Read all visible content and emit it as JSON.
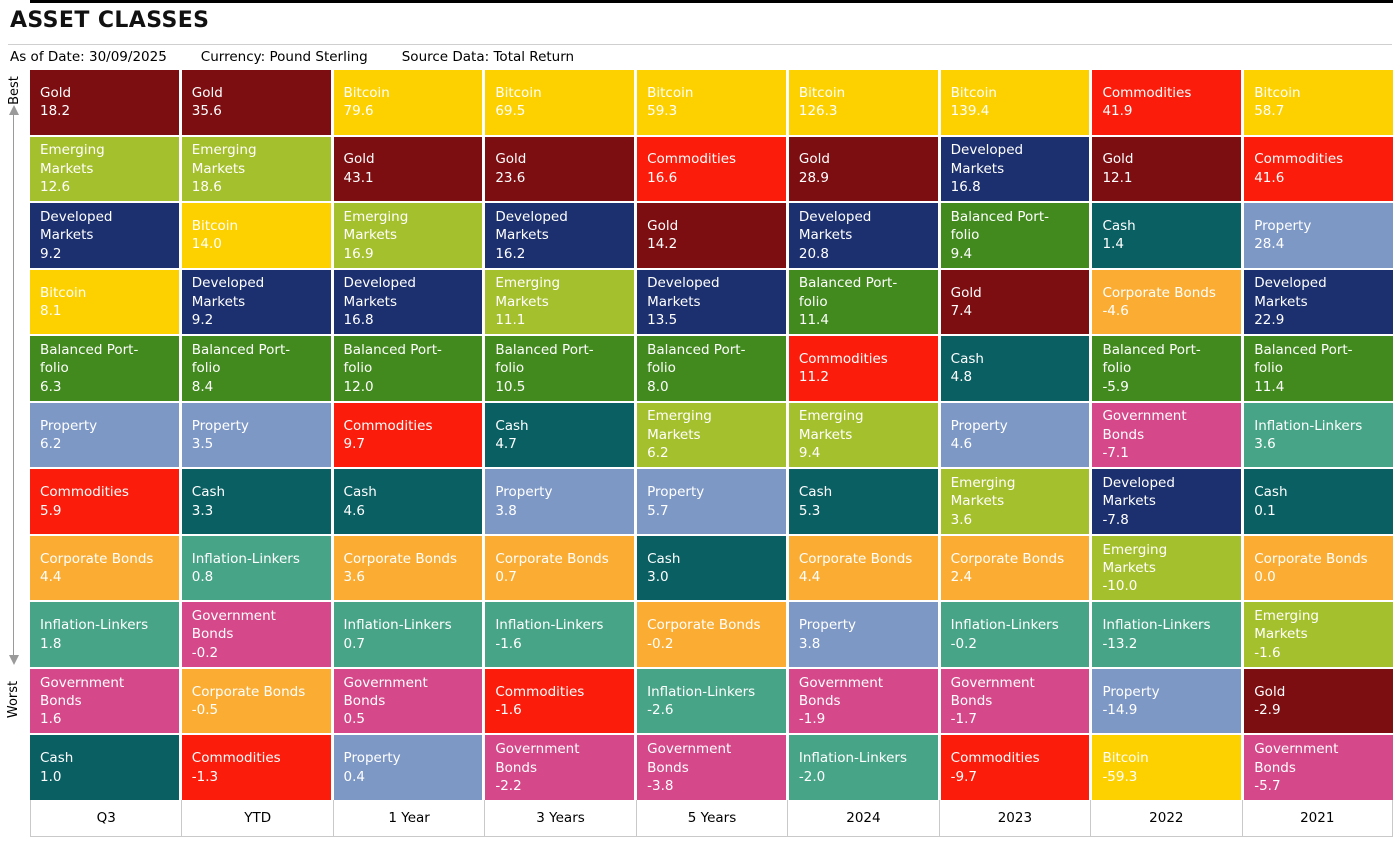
{
  "title": "ASSET CLASSES",
  "meta": [
    {
      "label": "As of Date:",
      "value": "30/09/2025"
    },
    {
      "label": "Currency:",
      "value": "Pound Sterling"
    },
    {
      "label": "Source Data:",
      "value": "Total Return"
    }
  ],
  "axis": {
    "best_label": "Best",
    "worst_label": "Worst"
  },
  "assets": {
    "gold": {
      "label": "Gold",
      "display": "Gold",
      "color": "#7c0d11"
    },
    "emerging_markets": {
      "label": "Emerging Markets",
      "display": "Emerging\nMarkets",
      "color": "#a5c02d"
    },
    "developed_markets": {
      "label": "Developed Markets",
      "display": "Developed\nMarkets",
      "color": "#1c2f6e"
    },
    "bitcoin": {
      "label": "Bitcoin",
      "display": "Bitcoin",
      "color": "#fdd100"
    },
    "balanced_portfolio": {
      "label": "Balanced Portfolio",
      "display": "Balanced Port-\nfolio",
      "color": "#428a1e"
    },
    "property": {
      "label": "Property",
      "display": "Property",
      "color": "#7e98c6"
    },
    "commodities": {
      "label": "Commodities",
      "display": "Commodities",
      "color": "#fb1c0c"
    },
    "corporate_bonds": {
      "label": "Corporate Bonds",
      "display": "Corporate Bonds",
      "color": "#fbad33"
    },
    "inflation_linkers": {
      "label": "Inflation-Linkers",
      "display": "Inflation-Linkers",
      "color": "#48a487"
    },
    "government_bonds": {
      "label": "Government Bonds",
      "display": "Government\nBonds",
      "color": "#d5498a"
    },
    "cash": {
      "label": "Cash",
      "display": "Cash",
      "color": "#0a5f63"
    }
  },
  "chart_data": {
    "type": "table",
    "subtype": "ranked-periodic-table",
    "title": "ASSET CLASSES",
    "value_format": "one-decimal percent return",
    "row_order": "best (top) to worst (bottom)",
    "columns": [
      {
        "label": "Q3",
        "entries": [
          {
            "asset": "gold",
            "value": 18.2
          },
          {
            "asset": "emerging_markets",
            "value": 12.6
          },
          {
            "asset": "developed_markets",
            "value": 9.2
          },
          {
            "asset": "bitcoin",
            "value": 8.1
          },
          {
            "asset": "balanced_portfolio",
            "value": 6.3
          },
          {
            "asset": "property",
            "value": 6.2
          },
          {
            "asset": "commodities",
            "value": 5.9
          },
          {
            "asset": "corporate_bonds",
            "value": 4.4
          },
          {
            "asset": "inflation_linkers",
            "value": 1.8
          },
          {
            "asset": "government_bonds",
            "value": 1.6
          },
          {
            "asset": "cash",
            "value": 1.0
          }
        ]
      },
      {
        "label": "YTD",
        "entries": [
          {
            "asset": "gold",
            "value": 35.6
          },
          {
            "asset": "emerging_markets",
            "value": 18.6
          },
          {
            "asset": "bitcoin",
            "value": 14.0
          },
          {
            "asset": "developed_markets",
            "value": 9.2
          },
          {
            "asset": "balanced_portfolio",
            "value": 8.4
          },
          {
            "asset": "property",
            "value": 3.5
          },
          {
            "asset": "cash",
            "value": 3.3
          },
          {
            "asset": "inflation_linkers",
            "value": 0.8
          },
          {
            "asset": "government_bonds",
            "value": -0.2
          },
          {
            "asset": "corporate_bonds",
            "value": -0.5
          },
          {
            "asset": "commodities",
            "value": -1.3
          }
        ]
      },
      {
        "label": "1 Year",
        "entries": [
          {
            "asset": "bitcoin",
            "value": 79.6
          },
          {
            "asset": "gold",
            "value": 43.1
          },
          {
            "asset": "emerging_markets",
            "value": 16.9
          },
          {
            "asset": "developed_markets",
            "value": 16.8
          },
          {
            "asset": "balanced_portfolio",
            "value": 12.0
          },
          {
            "asset": "commodities",
            "value": 9.7
          },
          {
            "asset": "cash",
            "value": 4.6
          },
          {
            "asset": "corporate_bonds",
            "value": 3.6
          },
          {
            "asset": "inflation_linkers",
            "value": 0.7
          },
          {
            "asset": "government_bonds",
            "value": 0.5
          },
          {
            "asset": "property",
            "value": 0.4
          }
        ]
      },
      {
        "label": "3 Years",
        "entries": [
          {
            "asset": "bitcoin",
            "value": 69.5
          },
          {
            "asset": "gold",
            "value": 23.6
          },
          {
            "asset": "developed_markets",
            "value": 16.2
          },
          {
            "asset": "emerging_markets",
            "value": 11.1
          },
          {
            "asset": "balanced_portfolio",
            "value": 10.5
          },
          {
            "asset": "cash",
            "value": 4.7
          },
          {
            "asset": "property",
            "value": 3.8
          },
          {
            "asset": "corporate_bonds",
            "value": 0.7
          },
          {
            "asset": "inflation_linkers",
            "value": -1.6
          },
          {
            "asset": "commodities",
            "value": -1.6
          },
          {
            "asset": "government_bonds",
            "value": -2.2
          }
        ]
      },
      {
        "label": "5 Years",
        "entries": [
          {
            "asset": "bitcoin",
            "value": 59.3
          },
          {
            "asset": "commodities",
            "value": 16.6
          },
          {
            "asset": "gold",
            "value": 14.2
          },
          {
            "asset": "developed_markets",
            "value": 13.5
          },
          {
            "asset": "balanced_portfolio",
            "value": 8.0
          },
          {
            "asset": "emerging_markets",
            "value": 6.2
          },
          {
            "asset": "property",
            "value": 5.7
          },
          {
            "asset": "cash",
            "value": 3.0
          },
          {
            "asset": "corporate_bonds",
            "value": -0.2
          },
          {
            "asset": "inflation_linkers",
            "value": -2.6
          },
          {
            "asset": "government_bonds",
            "value": -3.8
          }
        ]
      },
      {
        "label": "2024",
        "entries": [
          {
            "asset": "bitcoin",
            "value": 126.3
          },
          {
            "asset": "gold",
            "value": 28.9
          },
          {
            "asset": "developed_markets",
            "value": 20.8
          },
          {
            "asset": "balanced_portfolio",
            "value": 11.4
          },
          {
            "asset": "commodities",
            "value": 11.2
          },
          {
            "asset": "emerging_markets",
            "value": 9.4
          },
          {
            "asset": "cash",
            "value": 5.3
          },
          {
            "asset": "corporate_bonds",
            "value": 4.4
          },
          {
            "asset": "property",
            "value": 3.8
          },
          {
            "asset": "government_bonds",
            "value": -1.9
          },
          {
            "asset": "inflation_linkers",
            "value": -2.0
          }
        ]
      },
      {
        "label": "2023",
        "entries": [
          {
            "asset": "bitcoin",
            "value": 139.4
          },
          {
            "asset": "developed_markets",
            "value": 16.8
          },
          {
            "asset": "balanced_portfolio",
            "value": 9.4
          },
          {
            "asset": "gold",
            "value": 7.4
          },
          {
            "asset": "cash",
            "value": 4.8
          },
          {
            "asset": "property",
            "value": 4.6
          },
          {
            "asset": "emerging_markets",
            "value": 3.6
          },
          {
            "asset": "corporate_bonds",
            "value": 2.4
          },
          {
            "asset": "inflation_linkers",
            "value": -0.2
          },
          {
            "asset": "government_bonds",
            "value": -1.7
          },
          {
            "asset": "commodities",
            "value": -9.7
          }
        ]
      },
      {
        "label": "2022",
        "entries": [
          {
            "asset": "commodities",
            "value": 41.9
          },
          {
            "asset": "gold",
            "value": 12.1
          },
          {
            "asset": "cash",
            "value": 1.4
          },
          {
            "asset": "corporate_bonds",
            "value": -4.6
          },
          {
            "asset": "balanced_portfolio",
            "value": -5.9
          },
          {
            "asset": "government_bonds",
            "value": -7.1
          },
          {
            "asset": "developed_markets",
            "value": -7.8
          },
          {
            "asset": "emerging_markets",
            "value": -10.0
          },
          {
            "asset": "inflation_linkers",
            "value": -13.2
          },
          {
            "asset": "property",
            "value": -14.9
          },
          {
            "asset": "bitcoin",
            "value": -59.3
          }
        ]
      },
      {
        "label": "2021",
        "entries": [
          {
            "asset": "bitcoin",
            "value": 58.7
          },
          {
            "asset": "commodities",
            "value": 41.6
          },
          {
            "asset": "property",
            "value": 28.4
          },
          {
            "asset": "developed_markets",
            "value": 22.9
          },
          {
            "asset": "balanced_portfolio",
            "value": 11.4
          },
          {
            "asset": "inflation_linkers",
            "value": 3.6
          },
          {
            "asset": "cash",
            "value": 0.1
          },
          {
            "asset": "corporate_bonds",
            "value": 0.0
          },
          {
            "asset": "emerging_markets",
            "value": -1.6
          },
          {
            "asset": "gold",
            "value": -2.9
          },
          {
            "asset": "government_bonds",
            "value": -5.7
          }
        ]
      }
    ]
  }
}
